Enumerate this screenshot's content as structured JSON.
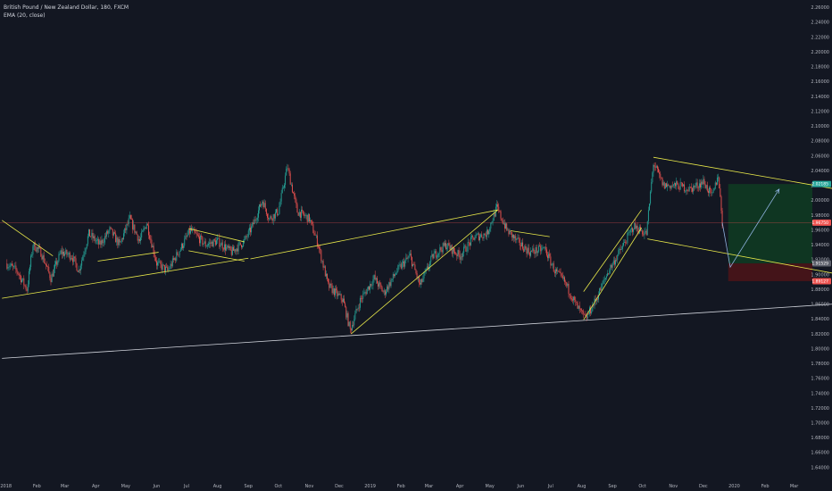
{
  "legend": {
    "title": "British Pound / New Zealand Dollar, 180, FXCM",
    "indicator": "EMA (20, close)"
  },
  "colors": {
    "background": "#131722",
    "up_candle": "#26a69a",
    "down_candle": "#ef5350",
    "trendline": "#e8e84a",
    "support_line": "#d1d4dc",
    "projection": "#8fb3e0",
    "profit_zone": "#0f3a22",
    "loss_zone": "#4a1418",
    "current_price_line": "#ef5350",
    "badge_green": "#26a69a",
    "badge_red": "#ef5350",
    "badge_grey": "#5d606b"
  },
  "chart_data": {
    "type": "candlestick",
    "symbol": "GBPNZD",
    "timeframe": "180",
    "ylim": [
      1.61,
      2.27
    ],
    "y_ticks": [
      "2.26000",
      "2.24000",
      "2.22000",
      "2.20000",
      "2.18000",
      "2.16000",
      "2.14000",
      "2.12000",
      "2.10000",
      "2.08000",
      "2.06000",
      "2.04000",
      "2.02000",
      "2.00000",
      "1.98000",
      "1.96000",
      "1.94000",
      "1.92000",
      "1.90000",
      "1.88000",
      "1.86000",
      "1.84000",
      "1.82000",
      "1.80000",
      "1.78000",
      "1.76000",
      "1.74000",
      "1.72000",
      "1.70000",
      "1.68000",
      "1.66000",
      "1.64000",
      "1.62000"
    ],
    "x_ticks": [
      "2018",
      "Feb",
      "Mar",
      "Apr",
      "May",
      "Jun",
      "Jul",
      "Aug",
      "Sep",
      "Oct",
      "Nov",
      "Dec",
      "2019",
      "Feb",
      "Mar",
      "Apr",
      "May",
      "Jun",
      "Jul",
      "Aug",
      "Sep",
      "Oct",
      "Nov",
      "Dec",
      "2020",
      "Feb",
      "Mar"
    ],
    "price_path": [
      {
        "x": "2018-01-01",
        "y": 1.915
      },
      {
        "x": "2018-01-12",
        "y": 1.905
      },
      {
        "x": "2018-01-22",
        "y": 1.88
      },
      {
        "x": "2018-01-28",
        "y": 1.94
      },
      {
        "x": "2018-02-05",
        "y": 1.93
      },
      {
        "x": "2018-02-15",
        "y": 1.895
      },
      {
        "x": "2018-02-25",
        "y": 1.93
      },
      {
        "x": "2018-03-08",
        "y": 1.925
      },
      {
        "x": "2018-03-15",
        "y": 1.905
      },
      {
        "x": "2018-03-25",
        "y": 1.955
      },
      {
        "x": "2018-04-05",
        "y": 1.94
      },
      {
        "x": "2018-04-15",
        "y": 1.96
      },
      {
        "x": "2018-04-25",
        "y": 1.94
      },
      {
        "x": "2018-05-05",
        "y": 1.975
      },
      {
        "x": "2018-05-15",
        "y": 1.945
      },
      {
        "x": "2018-05-22",
        "y": 1.97
      },
      {
        "x": "2018-06-01",
        "y": 1.915
      },
      {
        "x": "2018-06-12",
        "y": 1.905
      },
      {
        "x": "2018-06-25",
        "y": 1.935
      },
      {
        "x": "2018-07-05",
        "y": 1.96
      },
      {
        "x": "2018-07-20",
        "y": 1.94
      },
      {
        "x": "2018-08-01",
        "y": 1.945
      },
      {
        "x": "2018-08-15",
        "y": 1.93
      },
      {
        "x": "2018-08-28",
        "y": 1.945
      },
      {
        "x": "2018-09-05",
        "y": 1.965
      },
      {
        "x": "2018-09-15",
        "y": 2.0
      },
      {
        "x": "2018-09-22",
        "y": 1.975
      },
      {
        "x": "2018-10-01",
        "y": 1.985
      },
      {
        "x": "2018-10-10",
        "y": 2.045
      },
      {
        "x": "2018-10-20",
        "y": 1.985
      },
      {
        "x": "2018-11-01",
        "y": 1.975
      },
      {
        "x": "2018-11-10",
        "y": 1.94
      },
      {
        "x": "2018-11-20",
        "y": 1.885
      },
      {
        "x": "2018-12-05",
        "y": 1.865
      },
      {
        "x": "2018-12-12",
        "y": 1.825
      },
      {
        "x": "2018-12-22",
        "y": 1.865
      },
      {
        "x": "2019-01-05",
        "y": 1.895
      },
      {
        "x": "2019-01-15",
        "y": 1.875
      },
      {
        "x": "2019-01-28",
        "y": 1.905
      },
      {
        "x": "2019-02-10",
        "y": 1.925
      },
      {
        "x": "2019-02-20",
        "y": 1.885
      },
      {
        "x": "2019-03-05",
        "y": 1.925
      },
      {
        "x": "2019-03-18",
        "y": 1.94
      },
      {
        "x": "2019-04-01",
        "y": 1.925
      },
      {
        "x": "2019-04-15",
        "y": 1.95
      },
      {
        "x": "2019-04-28",
        "y": 1.955
      },
      {
        "x": "2019-05-08",
        "y": 1.99
      },
      {
        "x": "2019-05-18",
        "y": 1.96
      },
      {
        "x": "2019-05-28",
        "y": 1.945
      },
      {
        "x": "2019-06-10",
        "y": 1.93
      },
      {
        "x": "2019-06-25",
        "y": 1.935
      },
      {
        "x": "2019-07-05",
        "y": 1.905
      },
      {
        "x": "2019-07-15",
        "y": 1.89
      },
      {
        "x": "2019-07-28",
        "y": 1.855
      },
      {
        "x": "2019-08-05",
        "y": 1.84
      },
      {
        "x": "2019-08-15",
        "y": 1.865
      },
      {
        "x": "2019-08-28",
        "y": 1.905
      },
      {
        "x": "2019-09-10",
        "y": 1.935
      },
      {
        "x": "2019-09-22",
        "y": 1.965
      },
      {
        "x": "2019-10-05",
        "y": 1.955
      },
      {
        "x": "2019-10-12",
        "y": 2.05
      },
      {
        "x": "2019-10-22",
        "y": 2.02
      },
      {
        "x": "2019-11-05",
        "y": 2.02
      },
      {
        "x": "2019-11-18",
        "y": 2.015
      },
      {
        "x": "2019-12-01",
        "y": 2.025
      },
      {
        "x": "2019-12-10",
        "y": 2.005
      },
      {
        "x": "2019-12-16",
        "y": 2.035
      },
      {
        "x": "2019-12-20",
        "y": 1.97
      }
    ],
    "current_price": 1.97,
    "price_labels": {
      "current": "1.96750",
      "target": "2.02185",
      "stop_top": "1.91529",
      "stop_bottom": "1.89127"
    },
    "long_position": {
      "entry": 1.915,
      "target": 2.022,
      "stop": 1.891,
      "start": "2019-12-26",
      "end": "2020-03-25"
    },
    "trendlines": [
      {
        "from": [
          "2017-12-28",
          1.973
        ],
        "to": [
          "2018-02-17",
          1.925
        ]
      },
      {
        "from": [
          "2017-12-28",
          1.868
        ],
        "to": [
          "2018-09-01",
          1.922
        ]
      },
      {
        "from": [
          "2018-04-03",
          1.918
        ],
        "to": [
          "2018-06-03",
          1.93
        ]
      },
      {
        "from": [
          "2018-07-03",
          1.962
        ],
        "to": [
          "2018-08-28",
          1.944
        ]
      },
      {
        "from": [
          "2018-07-03",
          1.932
        ],
        "to": [
          "2018-08-28",
          1.918
        ]
      },
      {
        "from": [
          "2018-09-03",
          1.921
        ],
        "to": [
          "2019-05-09",
          1.987
        ]
      },
      {
        "from": [
          "2018-12-13",
          1.82
        ],
        "to": [
          "2019-05-09",
          1.987
        ]
      },
      {
        "from": [
          "2019-05-22",
          1.959
        ],
        "to": [
          "2019-06-30",
          1.951
        ]
      },
      {
        "from": [
          "2019-08-03",
          1.877
        ],
        "to": [
          "2019-09-30",
          1.987
        ]
      },
      {
        "from": [
          "2019-08-03",
          1.839
        ],
        "to": [
          "2019-09-30",
          1.963
        ]
      },
      {
        "from": [
          "2019-10-12",
          2.058
        ],
        "to": [
          "2020-04-08",
          2.016
        ]
      },
      {
        "from": [
          "2019-10-06",
          1.948
        ],
        "to": [
          "2020-04-08",
          1.902
        ]
      }
    ],
    "support_lines": [
      {
        "from": [
          "2017-12-28",
          1.787
        ],
        "to": [
          "2020-04-08",
          1.86
        ]
      }
    ],
    "projection": [
      [
        "2019-12-20",
        1.97
      ],
      [
        "2019-12-28",
        1.91
      ],
      [
        "2020-02-15",
        2.015
      ]
    ]
  }
}
